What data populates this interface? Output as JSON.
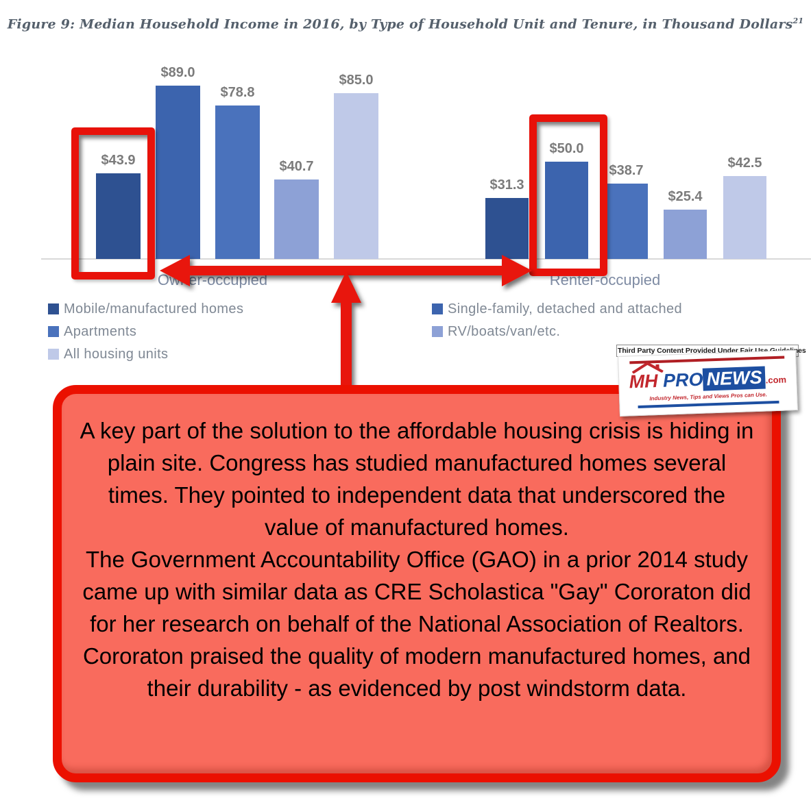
{
  "figure": {
    "title": "Figure 9: Median Household Income in 2016, by Type of Household Unit and Tenure, in Thousand Dollars",
    "title_superscript": "21"
  },
  "chart_data": {
    "type": "bar",
    "unit": "thousand dollars",
    "categories": [
      "Owner-occupied",
      "Renter-occupied"
    ],
    "series": [
      {
        "name": "Mobile/manufactured homes",
        "color": "#2e5191",
        "values": [
          43.9,
          31.3
        ]
      },
      {
        "name": "Single-family, detached and attached",
        "color": "#3c64ae",
        "values": [
          89.0,
          50.0
        ]
      },
      {
        "name": "Apartments",
        "color": "#4a72bc",
        "values": [
          78.8,
          38.7
        ]
      },
      {
        "name": "RV/boats/van/etc.",
        "color": "#8da1d6",
        "values": [
          40.7,
          25.4
        ]
      },
      {
        "name": "All housing units",
        "color": "#bfc9e8",
        "values": [
          85.0,
          42.5
        ]
      }
    ],
    "value_label_prefix": "$",
    "ylim": [
      0,
      95
    ],
    "grid": false,
    "legend_position": "bottom"
  },
  "legend": {
    "left": [
      {
        "label": "Mobile/manufactured homes",
        "color": "#2e5191"
      },
      {
        "label": "Apartments",
        "color": "#4a72bc"
      },
      {
        "label": "All housing units",
        "color": "#bfc9e8"
      }
    ],
    "right": [
      {
        "label": "Single-family, detached and attached",
        "color": "#3c64ae"
      },
      {
        "label": "RV/boats/van/etc.",
        "color": "#8da1d6"
      }
    ]
  },
  "annotation": {
    "highlight_color": "#e8120a",
    "highlighted_values": [
      "$43.9",
      "$50.0"
    ]
  },
  "watermark": {
    "fair_use_text": "Third Party Content Provided Under Fair Use Guidelines",
    "logo_mh": "MH",
    "logo_pro": "PRO",
    "logo_news": "NEWS",
    "logo_com": ".com",
    "tagline": "Industry News, Tips and Views Pros can Use."
  },
  "callout": {
    "fill_color": "#f96b5d",
    "border_color": "#eb1000",
    "paragraph1": "A key part of the solution to the affordable housing crisis is hiding in plain site. Congress has studied manufactured homes several times. They pointed to independent data that underscored the value of manufactured homes.",
    "paragraph2": "The Government Accountability Office (GAO) in a prior 2014 study came up with similar data as CRE Scholastica \"Gay\" Cororaton did for her research on behalf of the National Association of Realtors. Cororaton praised the quality of modern manufactured homes, and their durability - as evidenced by post windstorm data."
  }
}
